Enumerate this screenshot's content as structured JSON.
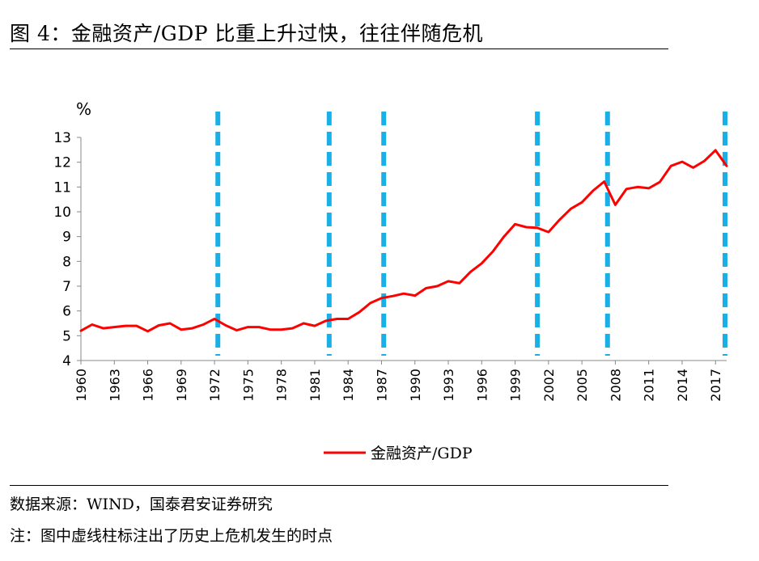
{
  "header": {
    "title": "图 4：金融资产/GDP 比重上升过快，往往伴随危机"
  },
  "footer": {
    "source": "数据来源：WIND，国泰君安证券研究",
    "note": "注：图中虚线柱标注出了历史上危机发生的时点"
  },
  "chart_data": {
    "type": "line",
    "title": "",
    "xlabel": "",
    "ylabel": "%",
    "ylim": [
      4,
      13
    ],
    "yticks": [
      4,
      5,
      6,
      7,
      8,
      9,
      10,
      11,
      12,
      13
    ],
    "xlim": [
      1960,
      2018
    ],
    "xticks": [
      "1960",
      "1963",
      "1966",
      "1969",
      "1972",
      "1975",
      "1978",
      "1981",
      "1984",
      "1987",
      "1990",
      "1993",
      "1996",
      "1999",
      "2002",
      "2005",
      "2008",
      "2011",
      "2014",
      "2017"
    ],
    "grid": false,
    "legend_position": "bottom",
    "series": [
      {
        "name": "金融资产/GDP",
        "color": "#ff0000",
        "x": [
          1960,
          1961,
          1962,
          1963,
          1964,
          1965,
          1966,
          1967,
          1968,
          1969,
          1970,
          1971,
          1972,
          1973,
          1974,
          1975,
          1976,
          1977,
          1978,
          1979,
          1980,
          1981,
          1982,
          1983,
          1984,
          1985,
          1986,
          1987,
          1988,
          1989,
          1990,
          1991,
          1992,
          1993,
          1994,
          1995,
          1996,
          1997,
          1998,
          1999,
          2000,
          2001,
          2002,
          2003,
          2004,
          2005,
          2006,
          2007,
          2008,
          2009,
          2010,
          2011,
          2012,
          2013,
          2014,
          2015,
          2016,
          2017,
          2018
        ],
        "values": [
          5.2,
          5.45,
          5.3,
          5.35,
          5.4,
          5.4,
          5.18,
          5.42,
          5.5,
          5.25,
          5.3,
          5.45,
          5.68,
          5.42,
          5.22,
          5.35,
          5.35,
          5.25,
          5.25,
          5.3,
          5.5,
          5.4,
          5.6,
          5.68,
          5.68,
          5.95,
          6.32,
          6.52,
          6.6,
          6.7,
          6.62,
          6.92,
          7.0,
          7.2,
          7.12,
          7.58,
          7.92,
          8.4,
          9.0,
          9.5,
          9.38,
          9.35,
          9.18,
          9.68,
          10.12,
          10.38,
          10.85,
          11.22,
          10.28,
          10.92,
          11.0,
          10.95,
          11.2,
          11.85,
          12.02,
          11.78,
          12.05,
          12.48,
          11.85
        ]
      }
    ],
    "crisis_markers": [
      1972.3,
      1982.3,
      1987.2,
      2001.0,
      2007.3,
      2018.0
    ],
    "marker_color": "#1ab0e6"
  }
}
